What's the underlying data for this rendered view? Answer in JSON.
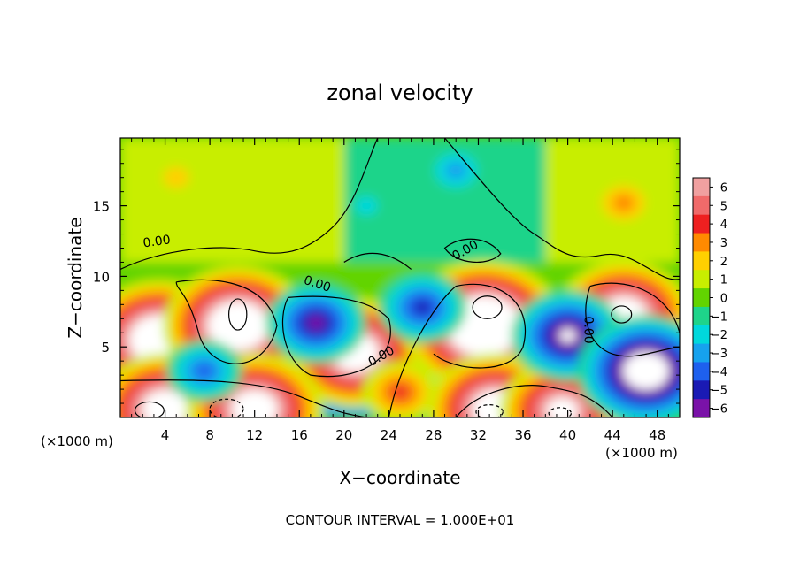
{
  "chart_data": {
    "type": "heatmap",
    "title": "zonal velocity",
    "xlabel": "X−coordinate",
    "ylabel": "Z−coordinate",
    "x_unit_left": "(×1000 m)",
    "x_unit_right": "(×1000 m)",
    "x_ticks": [
      "4",
      "8",
      "12",
      "16",
      "20",
      "24",
      "28",
      "32",
      "36",
      "40",
      "44",
      "48"
    ],
    "y_ticks": [
      "5",
      "10",
      "15"
    ],
    "xlim": [
      0,
      50
    ],
    "ylim": [
      0,
      19.8
    ],
    "footer": "CONTOUR INTERVAL = 1.000E+01",
    "colorbar": {
      "labels": [
        "6",
        "5",
        "4",
        "3",
        "2",
        "1",
        "0",
        "−1",
        "−2",
        "−3",
        "−4",
        "−5",
        "−6"
      ],
      "range": [
        -6,
        6
      ],
      "colors": [
        "#f0a0a0",
        "#f06a6a",
        "#ee2020",
        "#ff8a00",
        "#ffd000",
        "#c8ee00",
        "#62d400",
        "#1ed48a",
        "#00d8dc",
        "#16a2ee",
        "#1e60ee",
        "#1a1ab4",
        "#7a12a8"
      ]
    },
    "contour_labels": [
      "0.00",
      "0.00",
      "0.00",
      "0.00",
      "0.00"
    ],
    "features": [
      {
        "x": 3.5,
        "z": 5.5,
        "u": 10,
        "shape": "jet"
      },
      {
        "x": 10.5,
        "z": 6.5,
        "u": 10
      },
      {
        "x": 21,
        "z": 4.6,
        "u": 9
      },
      {
        "x": 32.5,
        "z": 6.5,
        "u": 11
      },
      {
        "x": 45,
        "z": 7.2,
        "u": 9
      },
      {
        "x": 4,
        "z": 0.6,
        "u": 9
      },
      {
        "x": 12,
        "z": 0.6,
        "u": 9
      },
      {
        "x": 33.5,
        "z": 0.6,
        "u": 9
      },
      {
        "x": 39.5,
        "z": 0.5,
        "u": 8
      },
      {
        "x": 17.5,
        "z": 6.7,
        "u": -6
      },
      {
        "x": 27,
        "z": 7.8,
        "u": -5
      },
      {
        "x": 40,
        "z": 5.8,
        "u": -7
      },
      {
        "x": 47,
        "z": 3.3,
        "u": -9
      },
      {
        "x": 7.5,
        "z": 3.3,
        "u": -4
      },
      {
        "x": 25,
        "z": 1.8,
        "u": 4
      },
      {
        "x": 45,
        "z": 15.2,
        "u": 3
      },
      {
        "x": 30,
        "z": 17.5,
        "u": -3
      },
      {
        "x": 22,
        "z": 15.0,
        "u": -1.5
      },
      {
        "x": 5,
        "z": 17,
        "u": 2
      }
    ]
  }
}
